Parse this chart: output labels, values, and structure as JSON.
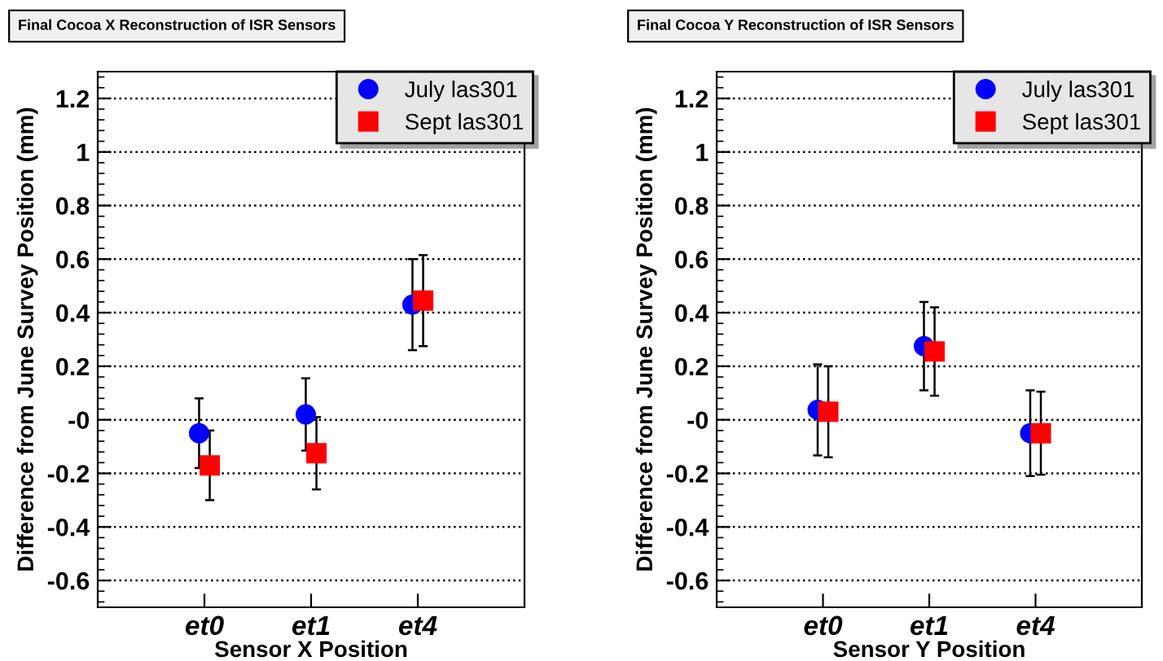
{
  "chart_data": [
    {
      "type": "scatter",
      "title": "Final Cocoa X Reconstruction of ISR Sensors",
      "xlabel": "Sensor X Position",
      "ylabel": "Difference from June Survey Position (mm)",
      "categories": [
        "et0",
        "et1",
        "et4"
      ],
      "ylim": [
        -0.7,
        1.3
      ],
      "yticks": [
        -0.6,
        -0.4,
        -0.2,
        {
          "value": 0,
          "label": "-0"
        },
        0.2,
        0.4,
        0.6,
        0.8,
        1,
        1.2
      ],
      "grid": "y",
      "legend": "top right",
      "series": [
        {
          "name": "July las301",
          "color": "#0000ff",
          "marker": "circle",
          "values": [
            -0.05,
            0.02,
            0.43
          ],
          "errors": [
            0.13,
            0.135,
            0.17
          ]
        },
        {
          "name": "Sept las301",
          "color": "#ff0000",
          "marker": "square",
          "values": [
            -0.17,
            -0.125,
            0.445
          ],
          "errors": [
            0.13,
            0.135,
            0.17
          ]
        }
      ]
    },
    {
      "type": "scatter",
      "title": "Final Cocoa Y Reconstruction of ISR Sensors",
      "xlabel": "Sensor Y Position",
      "ylabel": "Difference from June Survey Position (mm)",
      "categories": [
        "et0",
        "et1",
        "et4"
      ],
      "ylim": [
        -0.7,
        1.3
      ],
      "yticks": [
        -0.6,
        -0.4,
        -0.2,
        {
          "value": 0,
          "label": "-0"
        },
        0.2,
        0.4,
        0.6,
        0.8,
        1,
        1.2
      ],
      "grid": "y",
      "legend": "top right",
      "series": [
        {
          "name": "July las301",
          "color": "#0000ff",
          "marker": "circle",
          "values": [
            0.037,
            0.275,
            -0.05
          ],
          "errors": [
            0.17,
            0.165,
            0.16
          ]
        },
        {
          "name": "Sept las301",
          "color": "#ff0000",
          "marker": "square",
          "values": [
            0.03,
            0.255,
            -0.05
          ],
          "errors": [
            0.17,
            0.165,
            0.155
          ]
        }
      ]
    }
  ]
}
